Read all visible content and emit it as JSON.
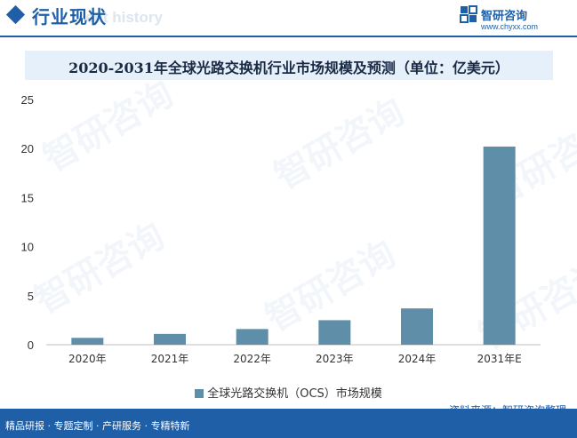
{
  "header": {
    "section_title": "行业现状",
    "section_title_ghost": "ent history",
    "brand_name": "智研咨询",
    "brand_url": "www.chyxx.com"
  },
  "colors": {
    "brand_blue": "#1f5fa8",
    "bar": "#5f8fa8",
    "title_band": "#e6f0fa"
  },
  "watermark_text": "智研咨询",
  "chart_data": {
    "type": "bar",
    "title": "2020-2031年全球光路交换机行业市场规模及预测（单位：亿美元）",
    "categories": [
      "2020年",
      "2021年",
      "2022年",
      "2023年",
      "2024年",
      "2031年E"
    ],
    "series": [
      {
        "name": "全球光路交换机（OCS）市场规模",
        "values": [
          0.7,
          1.1,
          1.6,
          2.5,
          3.7,
          20.2
        ]
      }
    ],
    "ylim": [
      0,
      25
    ],
    "yticks": [
      0,
      5,
      10,
      15,
      20,
      25
    ],
    "xlabel": "",
    "ylabel": "",
    "grid": false,
    "legend_position": "bottom"
  },
  "footer": {
    "left_text": "精品研报 · 专题定制 · 产研服务 · 专精特新",
    "source_text": "资料来源：智研咨询整理"
  }
}
